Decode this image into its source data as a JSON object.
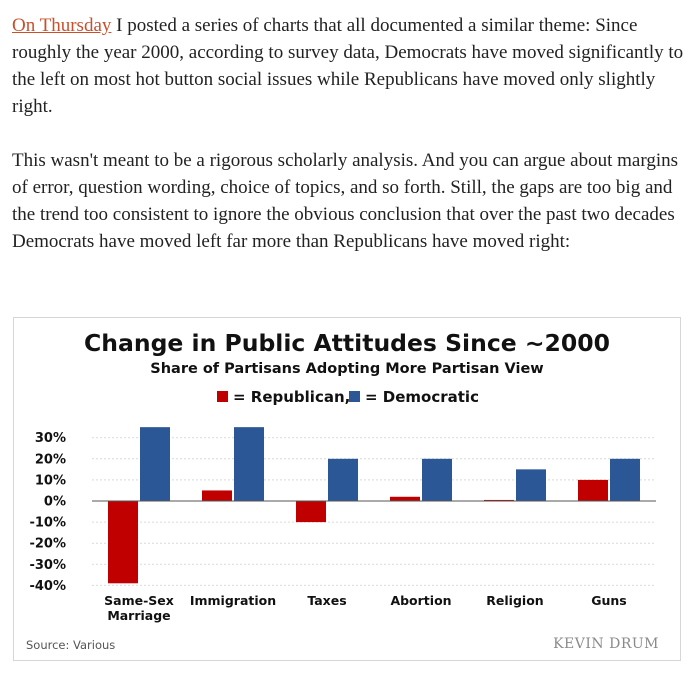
{
  "article": {
    "p1_link": "On Thursday",
    "p1_rest": " I posted a series of charts that all documented a similar theme: Since roughly the year 2000, according to survey data, Democrats have moved significantly to the left on most hot button social issues while Republicans have moved only slightly right.",
    "p2": "This wasn't meant to be a rigorous scholarly analysis. And you can argue about margins of error, question wording, choice of topics, and so forth. Still, the gaps are too big and the trend too consistent to ignore the obvious conclusion that over the past two decades Democrats have moved left far more than Republicans have moved right:"
  },
  "chart_data": {
    "type": "bar",
    "title": "Change in Public Attitudes Since ~2000",
    "subtitle": "Share of Partisans Adopting More Partisan View",
    "legend": {
      "republican": "= Republican,",
      "democratic": "= Democratic",
      "placement": "top-center"
    },
    "categories": [
      "Same-Sex\nMarriage",
      "Immigration",
      "Taxes",
      "Abortion",
      "Religion",
      "Guns"
    ],
    "series": [
      {
        "name": "Republican",
        "color": "#c00000",
        "values": [
          -39,
          5,
          -10,
          2,
          0.5,
          10
        ]
      },
      {
        "name": "Democratic",
        "color": "#2b5797",
        "values": [
          35,
          35,
          20,
          20,
          15,
          20
        ]
      }
    ],
    "yticks": [
      "30%",
      "20%",
      "10%",
      "0%",
      "-10%",
      "-20%",
      "-30%",
      "-40%"
    ],
    "ylim": [
      -40,
      30
    ],
    "grid": true,
    "source": "Source: Various",
    "brand": "KEVIN DRUM"
  }
}
